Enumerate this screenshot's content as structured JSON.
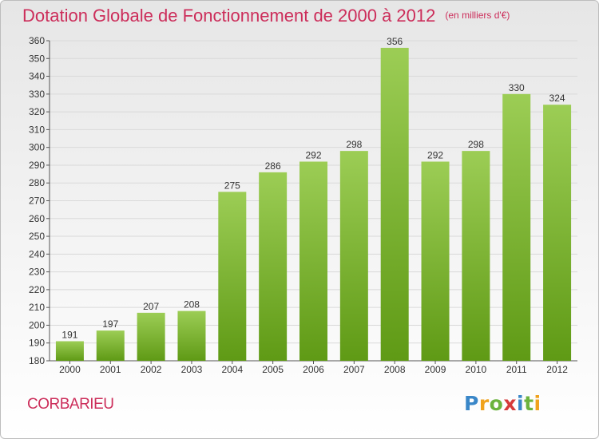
{
  "title": "Dotation Globale de Fonctionnement de 2000 à 2012",
  "subtitle": "(en milliers d'€)",
  "town": "CORBARIEU",
  "logo": {
    "text": "Proxiti",
    "letters": [
      {
        "ch": "P",
        "color": "#3a87c8"
      },
      {
        "ch": "r",
        "color": "#f0a21c"
      },
      {
        "ch": "o",
        "color": "#6cb33e"
      },
      {
        "ch": "x",
        "color": "#d63a3a"
      },
      {
        "ch": "i",
        "color": "#3a87c8"
      },
      {
        "ch": "t",
        "color": "#6cb33e"
      },
      {
        "ch": "i",
        "color": "#f0a21c"
      }
    ]
  },
  "colors": {
    "title": "#cc2d5a",
    "bar_light": "#9ccd55",
    "bar_dark": "#5f9a15",
    "grid": "#d9d9d9",
    "axis": "#555555",
    "text": "#333333"
  },
  "chart_data": {
    "type": "bar",
    "title": "Dotation Globale de Fonctionnement de 2000 à 2012",
    "subtitle": "(en milliers d'€)",
    "xlabel": "",
    "ylabel": "",
    "categories": [
      "2000",
      "2001",
      "2002",
      "2003",
      "2004",
      "2005",
      "2006",
      "2007",
      "2008",
      "2009",
      "2010",
      "2011",
      "2012"
    ],
    "values": [
      191,
      197,
      207,
      208,
      275,
      286,
      292,
      298,
      356,
      292,
      298,
      330,
      324
    ],
    "ylim": [
      180,
      360
    ],
    "ytick_step": 10,
    "grid": true,
    "legend": "none"
  }
}
